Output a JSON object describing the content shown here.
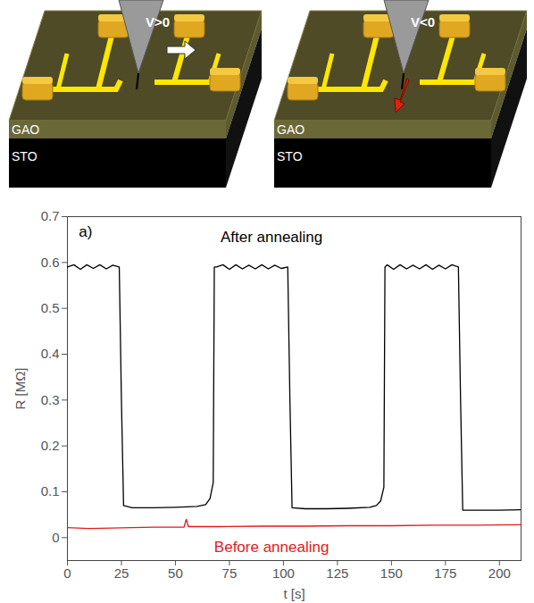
{
  "chart_data": {
    "type": "line",
    "annotations": [
      "a)"
    ],
    "xlabel": "t [s]",
    "ylabel": "R [MΩ]",
    "xlim": [
      0,
      210
    ],
    "xticks": [
      0,
      25,
      50,
      75,
      100,
      125,
      150,
      175,
      200
    ],
    "ylim": [
      -0.05,
      0.7
    ],
    "yticks": [
      0,
      0.1,
      0.2,
      0.3,
      0.4,
      0.5,
      0.6,
      0.7
    ],
    "series": [
      {
        "name": "After annealing",
        "color": "#000000",
        "x": [
          0,
          3,
          6,
          9,
          12,
          15,
          18,
          21,
          24,
          25,
          26,
          30,
          40,
          50,
          60,
          64,
          66,
          67.5,
          68,
          69,
          72,
          75,
          78,
          81,
          84,
          87,
          90,
          93,
          96,
          99,
          102,
          103,
          104,
          110,
          120,
          130,
          140,
          143,
          145,
          146.5,
          147,
          148,
          151,
          154,
          157,
          160,
          163,
          166,
          169,
          172,
          175,
          178,
          181,
          182,
          183,
          190,
          200,
          210
        ],
        "values": [
          0.59,
          0.595,
          0.585,
          0.595,
          0.587,
          0.595,
          0.586,
          0.594,
          0.59,
          0.3,
          0.07,
          0.065,
          0.065,
          0.066,
          0.068,
          0.072,
          0.085,
          0.12,
          0.59,
          0.59,
          0.595,
          0.585,
          0.595,
          0.586,
          0.594,
          0.586,
          0.595,
          0.586,
          0.594,
          0.587,
          0.59,
          0.3,
          0.065,
          0.063,
          0.063,
          0.064,
          0.066,
          0.07,
          0.08,
          0.11,
          0.59,
          0.595,
          0.585,
          0.595,
          0.586,
          0.594,
          0.586,
          0.595,
          0.585,
          0.594,
          0.586,
          0.595,
          0.59,
          0.3,
          0.06,
          0.06,
          0.06,
          0.061
        ]
      },
      {
        "name": "Before annealing",
        "color": "#e41a1c",
        "x": [
          0,
          10,
          20,
          30,
          40,
          50,
          54,
          55,
          56,
          70,
          90,
          110,
          130,
          150,
          170,
          190,
          210
        ],
        "values": [
          0.022,
          0.02,
          0.021,
          0.022,
          0.023,
          0.023,
          0.023,
          0.04,
          0.024,
          0.024,
          0.025,
          0.025,
          0.026,
          0.026,
          0.027,
          0.027,
          0.028
        ]
      }
    ]
  },
  "schematic": {
    "panels": [
      {
        "tip": "V>0",
        "layers": [
          "GAO",
          "STO"
        ]
      },
      {
        "tip": "V<0",
        "layers": [
          "GAO",
          "STO"
        ]
      }
    ]
  }
}
